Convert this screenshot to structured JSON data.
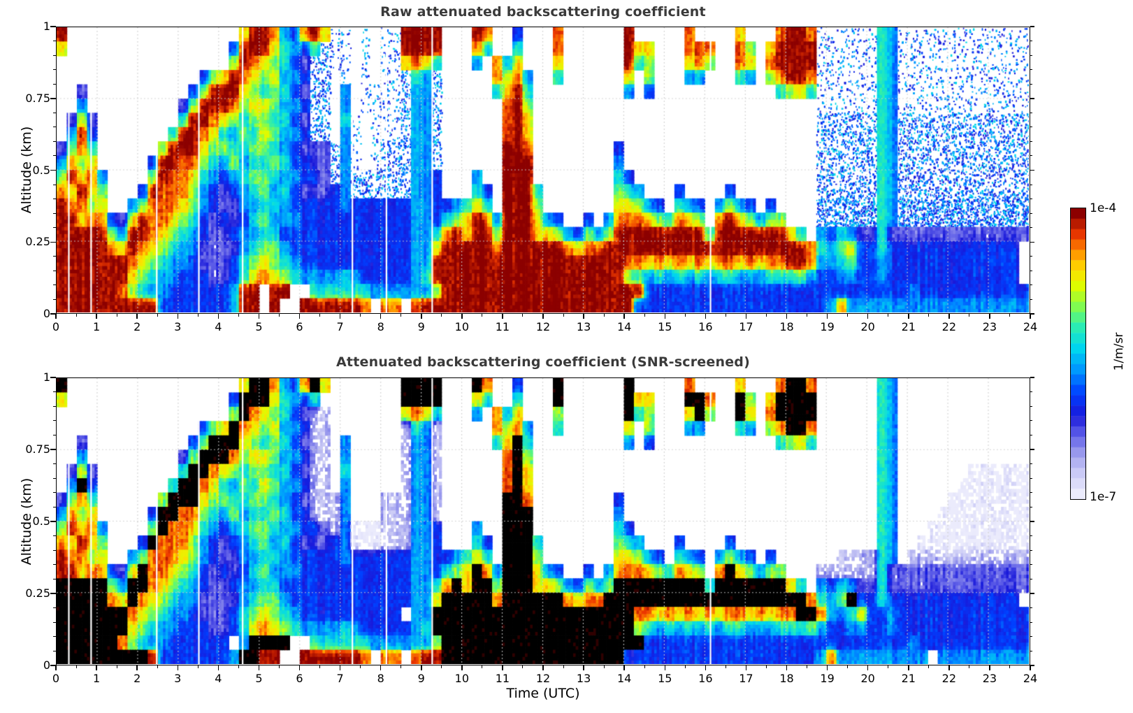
{
  "chart_data": {
    "type": "heatmap",
    "x": {
      "label": "Time (UTC)",
      "min": 0,
      "max": 24,
      "ticks": [
        0,
        1,
        2,
        3,
        4,
        5,
        6,
        7,
        8,
        9,
        10,
        11,
        12,
        13,
        14,
        15,
        16,
        17,
        18,
        19,
        20,
        21,
        22,
        23,
        24
      ],
      "minor_step": 0.5
    },
    "y": {
      "label": "Altitude (km)",
      "min": 0,
      "max": 1,
      "ticks": [
        {
          "v": 1,
          "label": "1"
        },
        {
          "v": 0.75,
          "label": "0.75"
        },
        {
          "v": 0.5,
          "label": "0.5"
        },
        {
          "v": 0.25,
          "label": "0.25"
        },
        {
          "v": 0,
          "label": "0"
        }
      ],
      "minor_step": 0.05
    },
    "value_scale": {
      "type": "log10",
      "min_exp": -7,
      "max_exp": -4,
      "unit": "1/m/sr"
    },
    "colorbar": {
      "max_label": "1e-4",
      "min_label": "1e-7",
      "unit_label": "1/m/sr",
      "segments": 28
    },
    "colormap": {
      "stops": [
        [
          0.0,
          235,
          235,
          252
        ],
        [
          0.07,
          205,
          205,
          246
        ],
        [
          0.14,
          160,
          160,
          238
        ],
        [
          0.21,
          95,
          95,
          232
        ],
        [
          0.28,
          25,
          25,
          218
        ],
        [
          0.36,
          0,
          64,
          255
        ],
        [
          0.44,
          0,
          150,
          255
        ],
        [
          0.52,
          0,
          214,
          238
        ],
        [
          0.6,
          46,
          238,
          174
        ],
        [
          0.67,
          132,
          252,
          76
        ],
        [
          0.74,
          222,
          252,
          0
        ],
        [
          0.8,
          255,
          222,
          0
        ],
        [
          0.86,
          255,
          148,
          0
        ],
        [
          0.92,
          238,
          58,
          0
        ],
        [
          1.0,
          140,
          0,
          0
        ]
      ],
      "saturated": "#000000",
      "background": "#ffffff"
    },
    "cell_codes": {
      ".": "no signal (white)",
      "0-9": "log10 backscatter from -7.0 to -4.0 in steps of 1/3",
      "K": "saturated / out-of-range (black, screened panel)",
      "a": "sparse low-level noise speckle",
      "b": "medium noise speckle",
      "c": "dense noise speckle"
    },
    "grid_cols": 96,
    "grid_rows": 20,
    "gap_times": [
      0.3,
      0.85,
      2.47,
      3.51,
      4.59,
      7.3,
      8.14,
      9.27,
      16.14
    ],
    "panels": [
      {
        "title": "Raw attenuated backscattering coefficient",
        "rows": [
          "9.................799843897aa.a.aa9999...98..3...8......9.....8....7...8998aaaaaa54aaaaaaaaaaaaa",
          "7................399975435baa.a.aa9999...85..5...8......977...888..86.79999aaaaaa54aaaaaaaaaaaaa",
          ".................69876532bbaa.a.aa7875...4.847...7......956...786..87.89999aaaaaa54aaaaaaaaaaaaa",
          "..............36798767443bb.a.a.aab54b.....8684..5......7.6...44...54.68998aaaaaa54aaaaaaaaaaaaa",
          "..2..........369997656532bb.4.aaaab44b.....5795.........4.3............5675aaaaaa54aaaaaaaaaaaaa",
          "..4.........2699986776443bb.4.aaaab44b......896............................aaaaaa54aaaaaaaaaaaaa",
          ".272........5998765665532bb.5a.aaab44b......897............................bbbbbb54bbbbbbbbbbbbb",
          ".493.......59987546576443bb.4a.aaab44b......897............................bbbbbb54bbbbbbbbbbbbb",
          "2685......69997665566543222b4a.abbb44b......998........3...................bbbbbb54bbbbbbbbbbbbb",
          "4867.....399886546455653322b4a.abbb44b......999........4...................bbbbbb54bbbbbbbbbbbbb",
          "69784....698875434566544332b4bbbbbb443...4..999........53..................bbbbbb54bbbbbbbbbbbbb",
          "87976...398886432345645322234bbbbbb443...53.9995.......654...3....3........bbbbbb54bbbbbbbbbbbbb",
          "98867..468887643224455433333433333344334575.9996.......77643.543.4643.3....cccccc54ccccccccccccc",
          "99788327988765323235644433333333333443567984999743..3.4888765876.8976466...cccccc54ccccccccccccc",
          "99999649987654322344553333333333333445897996999776436469999999995999999975.435422522222222222222",
          "99999879876544222245664333333333333447999998999999878899999999999999999999854673353333333333333 ",
          "99999998765443222356765433333333333449999999999999999999887878787887878899844563343333333333333 ",
          "99999997654433322357876544445433333459999999999999999999654545454554445556433443343333333333333 ",
          "99999986544333333499 99..55555544444469999999999999999999933333333333333333333333333433333333333 ",
          "99999999993333333499 9..9999998.88.89999999999999999999993333333333333333333484444444444444444444"
        ]
      },
      {
        "title": "Attenuated backscattering coefficient (SNR-screened)",
        "rows": [
          "K.................7KK8438K7.......KKKK...K8..3...K......K.....8....7...8KK8......54.............",
          "7................3KKK75435........KKKK...75..5...K......K77...KK8..K6.7KKKK......54.............",
          ".................6K87653211.......7875...4.847...6......K56...7K6..K7.8KKKK......54.............",
          "..............367K876744311.......1541.....8684..5......7.6...44...54.68KK8......54.............",
          "..2..........36KKK765653211.4.....1441.....57K5.........4.3............5675......54.............",
          "..4.........26KKK8677644311.4.....1441......8K6..................................54.............",
          ".272........5KK876566553211.5.....1441......8K7..................................54.......000000",
          ".4K3.......5KK8754657644311.4.....1441......8K7..................................54......0000000",
          "2685......6KKK766556654321114...111441......KK8........3.........................54.....00000000",
          "4867.....3KK88654645565331114...111441......KKK........4.........................54....000000000",
          "69784....6K887543456654433214000111443...4..KKK........53........................54...0000000000",
          "87976...3K8886432345645322234000111443...53.KKK5.......654...3....3..............54..00000000000",
          "98867..468887643224455433333433333344334575.KKK6.......77643.543.4643.3......111154.111111111111",
          "99788327K88765323235644433333333333443567K84KKK743..3.4888765876.8K76466...111111522222222222222",
          "KKKKK64KK876543223445533333333333334458K7KK6KKK77643646KKKKKKKKK5KKKKKKK75.435422522222222222222",
          "KKKKK87K876544222245664333333333333447KKKKK8KKKKKK8788KKKKKKKKKKKKKKKKKKKK8546K3353333333333333 ",
          "KKKKKKK876544322235676543333333333 44KKKKKKKKKKKKKKKKKKKK8878787878878788KK844573343333333333333 ",
          "KKKKKKK765443332235787654444543333345KKKKKKKKKKKKKKKKKKKK654545454554445556433443343333333333333 ",
          "KKKKKK86544333333 4KKKK..5555554444446KKKKKKKKKKKKKKKKKKKK3333333333333333333333333343333333333333 ",
          "KKKKKKKKK933333334KK99..9999998.88.899KKKKKKKKKKKKKKKKKK333333333333333333348444444444.444444444"
        ]
      }
    ]
  }
}
